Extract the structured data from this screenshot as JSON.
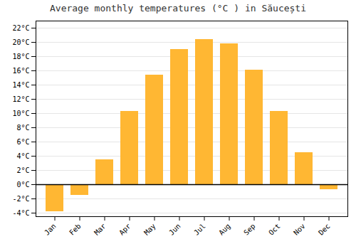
{
  "chart_data": {
    "type": "bar",
    "title": "Average monthly temperatures (°C ) in Săucești",
    "categories": [
      "Jan",
      "Feb",
      "Mar",
      "Apr",
      "May",
      "Jun",
      "Jul",
      "Aug",
      "Sep",
      "Oct",
      "Nov",
      "Dec"
    ],
    "values": [
      -3.8,
      -1.5,
      3.5,
      10.3,
      15.4,
      19.0,
      20.4,
      19.8,
      16.1,
      10.3,
      4.5,
      -0.7
    ],
    "color": "#FFB733",
    "ylim": [
      -4.5,
      23
    ],
    "yticks": [
      {
        "value": -4,
        "label": "-4°C"
      },
      {
        "value": -2,
        "label": "-2°C"
      },
      {
        "value": 0,
        "label": "0°C"
      },
      {
        "value": 2,
        "label": "2°C"
      },
      {
        "value": 4,
        "label": "4°C"
      },
      {
        "value": 6,
        "label": "6°C"
      },
      {
        "value": 8,
        "label": "8°C"
      },
      {
        "value": 10,
        "label": "10°C"
      },
      {
        "value": 12,
        "label": "12°C"
      },
      {
        "value": 14,
        "label": "14°C"
      },
      {
        "value": 16,
        "label": "16°C"
      },
      {
        "value": 18,
        "label": "18°C"
      },
      {
        "value": 20,
        "label": "20°C"
      },
      {
        "value": 22,
        "label": "22°C"
      }
    ],
    "grid": true
  }
}
